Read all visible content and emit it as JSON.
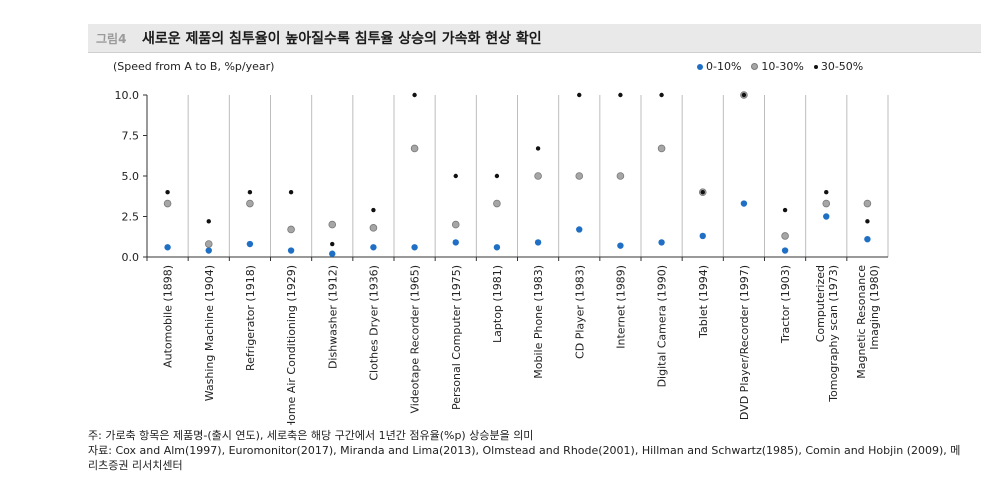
{
  "header": {
    "figure_label": "그림4",
    "title": "새로운 제품의 침투율이 높아질수록 침투율 상승의 가속화 현상 확인"
  },
  "chart_data": {
    "type": "scatter",
    "unit_note": "(Speed from A to B, %p/year)",
    "ylim": [
      0,
      10
    ],
    "yticks": [
      "10.0",
      "7.5",
      "5.0",
      "2.5",
      "0.0"
    ],
    "ytick_values": [
      10,
      7.5,
      5,
      2.5,
      0
    ],
    "grid": "vertical",
    "legend_position": "top-right",
    "categories": [
      "Automobile (1898)",
      "Washing Machine (1904)",
      "Refrigerator (1918)",
      "Home Air Conditioning (1929)",
      "Dishwasher (1912)",
      "Clothes Dryer (1936)",
      "Videotape Recorder (1965)",
      "Personal Computer (1975)",
      "Laptop (1981)",
      "Mobile Phone (1983)",
      "CD Player (1983)",
      "Internet (1989)",
      "Digital Camera (1990)",
      "Tablet (1994)",
      "DVD Player/Recorder (1997)",
      "Tractor (1903)",
      "Computerized Tomography scan (1973)",
      "Magnetic Resonance Imaging (1980)"
    ],
    "series": [
      {
        "name": "0-10%",
        "color": "#1f6fc5",
        "stroke": "#1f6fc5",
        "values": [
          0.6,
          0.4,
          0.8,
          0.4,
          0.2,
          0.6,
          0.6,
          0.9,
          0.6,
          0.9,
          1.7,
          0.7,
          0.9,
          1.3,
          3.3,
          0.4,
          2.5,
          1.1
        ]
      },
      {
        "name": "10-30%",
        "color": "#a6a6a6",
        "stroke": "#7a7a7a",
        "values": [
          3.3,
          0.8,
          3.3,
          1.7,
          2.0,
          1.8,
          6.7,
          2.0,
          3.3,
          5.0,
          5.0,
          5.0,
          6.7,
          4.0,
          10.0,
          1.3,
          3.3,
          3.3
        ]
      },
      {
        "name": "30-50%",
        "color": "#111111",
        "stroke": "#111111",
        "values": [
          4.0,
          2.2,
          4.0,
          4.0,
          0.8,
          2.9,
          10.0,
          5.0,
          5.0,
          6.7,
          10.0,
          10.0,
          10.0,
          4.0,
          10.0,
          2.9,
          4.0,
          2.2
        ]
      }
    ]
  },
  "notes": {
    "line1": "주: 가로축 항목은 제품명-(출시 연도), 세로축은 해당 구간에서 1년간 점유율(%p) 상승분을 의미",
    "line2": "자료: Cox and Alm(1997), Euromonitor(2017), Miranda and Lima(2013), Olmstead and Rhode(2001), Hillman and Schwartz(1985), Comin and Hobjin (2009), 메리츠증권 리서치센터"
  }
}
